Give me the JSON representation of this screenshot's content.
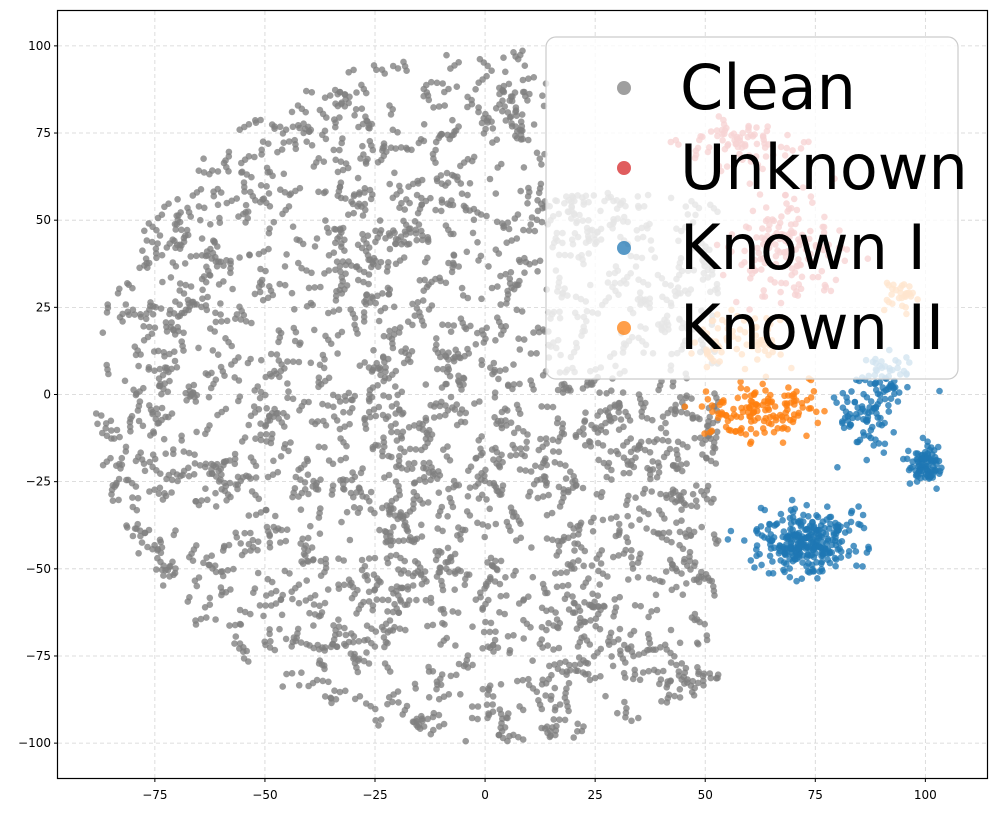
{
  "chart_data": {
    "type": "scatter",
    "title": "",
    "xlabel": "",
    "ylabel": "",
    "xlim": [
      -97,
      114
    ],
    "ylim": [
      -110,
      110
    ],
    "xticks": [
      -75,
      -50,
      -25,
      0,
      25,
      50,
      75,
      100
    ],
    "yticks": [
      -100,
      -75,
      -50,
      -25,
      0,
      25,
      50,
      75,
      100
    ],
    "grid": true,
    "legend_position": "top-right",
    "series": [
      {
        "name": "Clean",
        "color": "#7f7f7f",
        "approx_point_count": 3400,
        "region": {
          "shape": "disc",
          "center": [
            4,
            0
          ],
          "radius_x": 93,
          "radius_y": 100,
          "x_max": 53,
          "y_max_at_x_gt_14": 58
        }
      },
      {
        "name": "Unknown",
        "color": "#d62728",
        "approx_point_count": 230,
        "clusters": [
          {
            "center": [
              60,
              72
            ],
            "spread": [
              12,
              6
            ],
            "count": 80
          },
          {
            "center": [
              68,
              42
            ],
            "spread": [
              10,
              12
            ],
            "count": 150
          }
        ]
      },
      {
        "name": "Known I",
        "color": "#1f77b4",
        "approx_point_count": 520,
        "clusters": [
          {
            "center": [
              73,
              -42
            ],
            "spread": [
              9,
              8
            ],
            "count": 300
          },
          {
            "center": [
              86,
              -5
            ],
            "spread": [
              6,
              9
            ],
            "count": 80
          },
          {
            "center": [
              92,
              5
            ],
            "spread": [
              5,
              5
            ],
            "count": 50
          },
          {
            "center": [
              100,
              -20
            ],
            "spread": [
              3,
              5
            ],
            "count": 90
          }
        ]
      },
      {
        "name": "Known II",
        "color": "#ff7f0e",
        "approx_point_count": 240,
        "clusters": [
          {
            "center": [
              62,
              -5
            ],
            "spread": [
              10,
              7
            ],
            "count": 140
          },
          {
            "center": [
              57,
              16
            ],
            "spread": [
              10,
              6
            ],
            "count": 70
          },
          {
            "center": [
              94,
              29
            ],
            "spread": [
              3,
              4
            ],
            "count": 30
          }
        ]
      }
    ]
  }
}
